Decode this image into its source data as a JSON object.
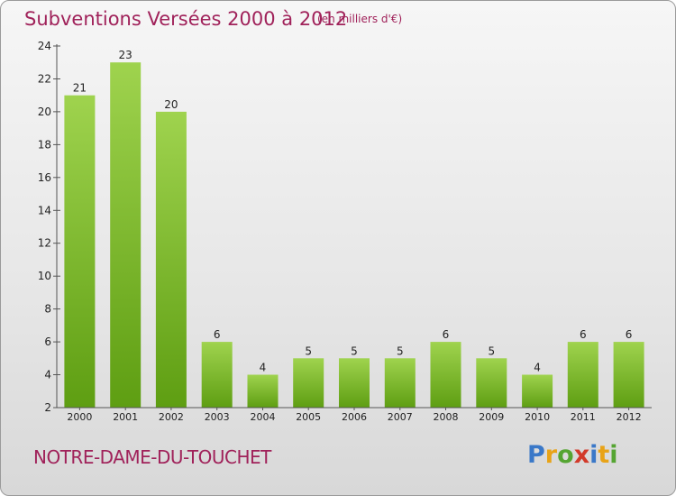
{
  "title": "Subventions Versées 2000 à 2012",
  "subtitle": "(en milliers d'€)",
  "commune": "NOTRE-DAME-DU-TOUCHET",
  "logo": {
    "letters": [
      "P",
      "r",
      "o",
      "x",
      "i",
      "t",
      "i"
    ],
    "colors": [
      "#3a78c8",
      "#e8a317",
      "#55a532",
      "#d23a2a",
      "#3a78c8",
      "#e8a317",
      "#55a532"
    ]
  },
  "colors": {
    "accent": "#a0225a",
    "bar_top": "#9fd34e",
    "bar_bottom": "#5e9e12"
  },
  "chart_data": {
    "type": "bar",
    "categories": [
      "2000",
      "2001",
      "2002",
      "2003",
      "2004",
      "2005",
      "2006",
      "2007",
      "2008",
      "2009",
      "2010",
      "2011",
      "2012"
    ],
    "values": [
      21,
      23,
      20,
      6,
      4,
      5,
      5,
      5,
      6,
      5,
      4,
      6,
      6
    ],
    "ylim": [
      2,
      24
    ],
    "yticks": [
      2,
      4,
      6,
      8,
      10,
      12,
      14,
      16,
      18,
      20,
      22,
      24
    ],
    "grid": false,
    "legend": "none"
  }
}
